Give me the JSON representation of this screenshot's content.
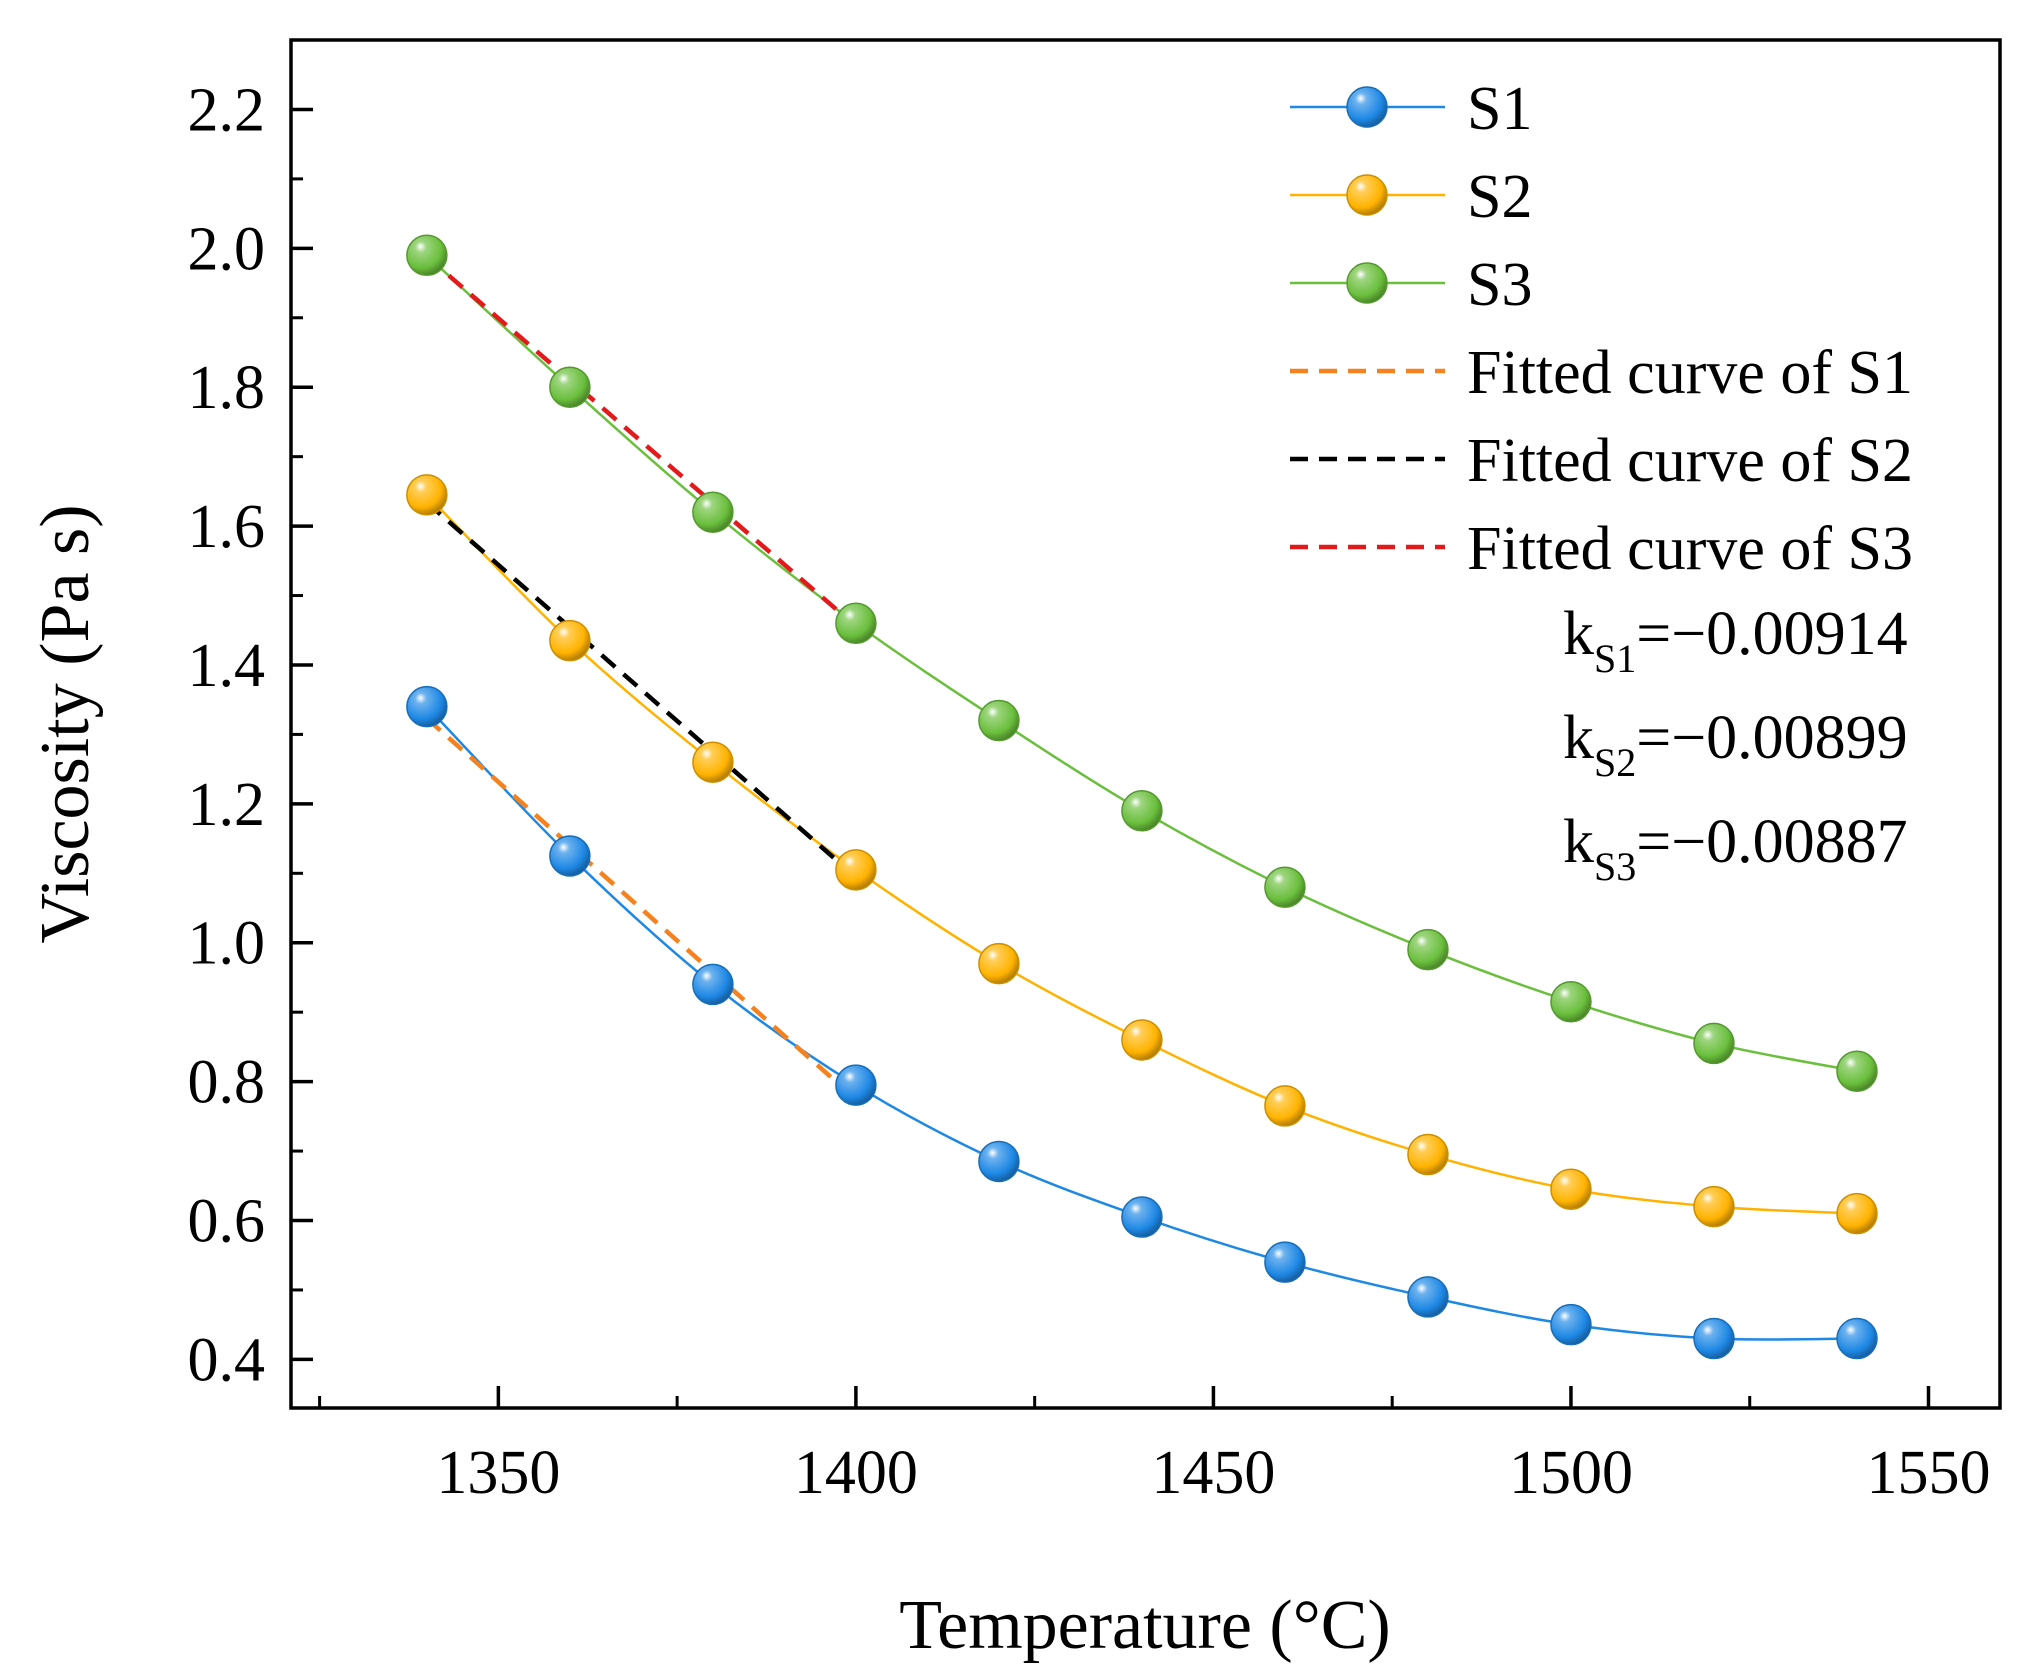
{
  "chart_data": {
    "type": "line",
    "xlabel": "Temperature (°C)",
    "ylabel": "Viscosity (Pa s)",
    "xlim": [
      1321,
      1560
    ],
    "ylim": [
      0.33,
      2.3
    ],
    "xticks": [
      1350,
      1400,
      1450,
      1500,
      1550
    ],
    "yticks": [
      0.4,
      0.6,
      0.8,
      1.0,
      1.2,
      1.4,
      1.6,
      1.8,
      2.0,
      2.2
    ],
    "x_minor_step": 25,
    "y_minor_step": 0.1,
    "legend_position": "top-right",
    "series": [
      {
        "name": "S1",
        "color": "#1e88e5",
        "marker": "sphere",
        "x": [
          1340,
          1360,
          1380,
          1400,
          1420,
          1440,
          1460,
          1480,
          1500,
          1520,
          1540
        ],
        "values": [
          1.34,
          1.125,
          0.94,
          0.795,
          0.685,
          0.605,
          0.54,
          0.49,
          0.45,
          0.43,
          0.43
        ]
      },
      {
        "name": "S2",
        "color": "#ffb300",
        "marker": "sphere",
        "x": [
          1340,
          1360,
          1380,
          1400,
          1420,
          1440,
          1460,
          1480,
          1500,
          1520,
          1540
        ],
        "values": [
          1.645,
          1.435,
          1.26,
          1.105,
          0.97,
          0.86,
          0.765,
          0.695,
          0.645,
          0.62,
          0.61
        ]
      },
      {
        "name": "S3",
        "color": "#6abf3c",
        "marker": "sphere",
        "x": [
          1340,
          1360,
          1380,
          1400,
          1420,
          1440,
          1460,
          1480,
          1500,
          1520,
          1540
        ],
        "values": [
          1.99,
          1.8,
          1.62,
          1.46,
          1.32,
          1.19,
          1.08,
          0.99,
          0.915,
          0.855,
          0.815
        ]
      }
    ],
    "fitted_lines": [
      {
        "name": "Fitted curve of S1",
        "color": "#f5821f",
        "x": [
          1340,
          1400
        ],
        "values": [
          1.323,
          0.7746
        ]
      },
      {
        "name": "Fitted curve of S2",
        "color": "#000000",
        "x": [
          1340,
          1400
        ],
        "values": [
          1.634,
          1.0946
        ]
      },
      {
        "name": "Fitted curve of S3",
        "color": "#e31a1c",
        "x": [
          1340,
          1400
        ],
        "values": [
          1.988,
          1.4558
        ]
      }
    ],
    "k_annotations": [
      {
        "base": "k",
        "sub": "S1",
        "value": "=−0.00914"
      },
      {
        "base": "k",
        "sub": "S2",
        "value": "=−0.00899"
      },
      {
        "base": "k",
        "sub": "S3",
        "value": "=−0.00887"
      }
    ]
  }
}
